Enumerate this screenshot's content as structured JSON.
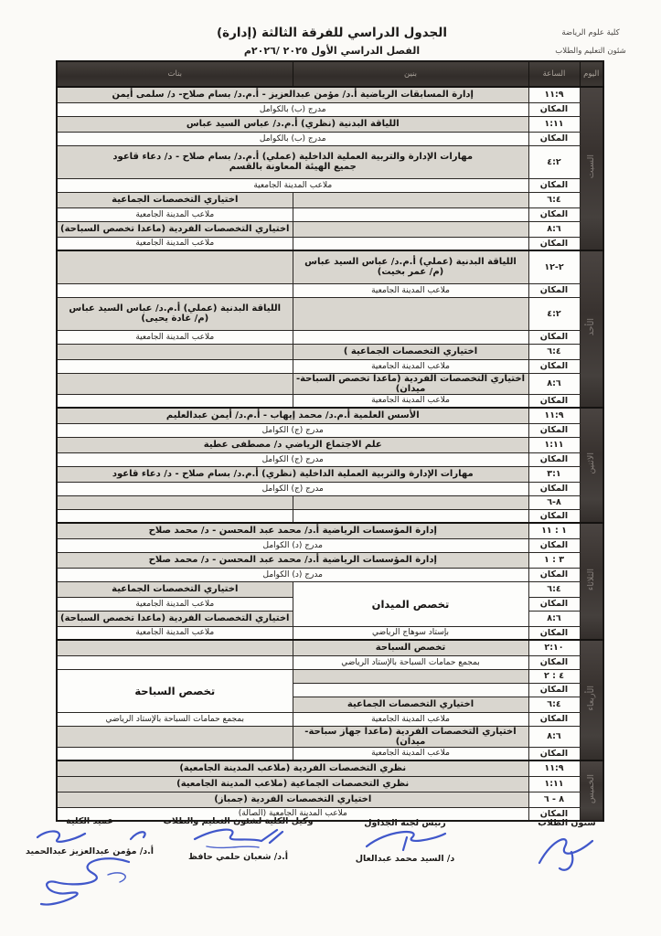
{
  "meta": {
    "corner_line1": "كلية علوم الرياضة",
    "corner_line2": "شئون التعليم والطلاب",
    "title": "الجدول الدراسي للفرقة الثالثة (إدارة)",
    "subtitle": "الفصل الدراسي الأول ٢٠٢٥ /٢٠٢٦م"
  },
  "colors": {
    "ink_blue": "#2b45c4",
    "header_dark": "#38322f",
    "shade_gray": "#d9d6cf"
  },
  "table": {
    "headers": {
      "day": "اليوم",
      "time": "الساعة",
      "right": "بنين",
      "left": "بنات"
    },
    "place_label": "المكان",
    "groups": [
      {
        "day": "السبت",
        "rows": [
          {
            "time": "١١:٩",
            "h": "h-subj",
            "cells": [
              {
                "col": "full",
                "cls": "subj",
                "text": "إدارة المسابقات الرياضية  أ.د/ مؤمن عبدالعزيز - أ.م.د/ بسام صلاح- د/ سلمى أيمن"
              }
            ]
          },
          {
            "time": "المكان",
            "h": "h-place",
            "cells": [
              {
                "col": "full",
                "cls": "place",
                "text": "مدرج (ب) بالكوامل"
              }
            ]
          },
          {
            "time": "١:١١",
            "h": "h-subj",
            "cells": [
              {
                "col": "full",
                "cls": "subj",
                "text": "اللياقة البدنية (نظري)  أ.م.د/ عباس السيد عباس"
              }
            ]
          },
          {
            "time": "المكان",
            "h": "h-place",
            "cells": [
              {
                "col": "full",
                "cls": "place",
                "text": "مدرج (ب) بالكوامل"
              }
            ]
          },
          {
            "time": "٤:٢",
            "h": "h-tall",
            "cells": [
              {
                "col": "full",
                "cls": "subj",
                "lines": [
                  "مهارات الإدارة والتربية العملية الداخلية (عملي) أ.م.د/ بسام صلاح - د/ دعاء قاعود",
                  "جميع الهيئة المعاونة بالقسم"
                ]
              }
            ]
          },
          {
            "time": "المكان",
            "h": "h-place",
            "cells": [
              {
                "col": "full",
                "cls": "place",
                "text": "ملاعب المدينة الجامعية"
              }
            ]
          },
          {
            "time": "٦:٤",
            "h": "h-subj",
            "cells": [
              {
                "col": "right",
                "cls": "empty-shaded",
                "text": ""
              },
              {
                "col": "left",
                "cls": "subj",
                "text": "اختياري التخصصات الجماعية"
              }
            ]
          },
          {
            "time": "المكان",
            "h": "h-place",
            "cells": [
              {
                "col": "right",
                "cls": "place",
                "text": ""
              },
              {
                "col": "left",
                "cls": "place",
                "text": "ملاعب المدينة الجامعية"
              }
            ]
          },
          {
            "time": "٨:٦",
            "h": "h-subj",
            "cells": [
              {
                "col": "right",
                "cls": "empty-shaded",
                "text": ""
              },
              {
                "col": "left",
                "cls": "subj",
                "text": "اختياري التخصصات الفردية (ماعدا تخصص السباحة)"
              }
            ]
          },
          {
            "time": "المكان",
            "h": "h-place",
            "cells": [
              {
                "col": "right",
                "cls": "place",
                "text": ""
              },
              {
                "col": "left",
                "cls": "place",
                "text": "ملاعب المدينة الجامعية"
              }
            ]
          }
        ]
      },
      {
        "day": "الأحد",
        "rows": [
          {
            "time": "٢-١٢",
            "h": "h-tall",
            "cells": [
              {
                "col": "right",
                "cls": "subj",
                "lines": [
                  "اللياقة البدنية (عملي) أ.م.د/ عباس السيد عباس",
                  "(م/ عمر بخيت)"
                ]
              },
              {
                "col": "left",
                "cls": "empty-shaded",
                "text": ""
              }
            ]
          },
          {
            "time": "المكان",
            "h": "h-place",
            "cells": [
              {
                "col": "right",
                "cls": "place",
                "text": "ملاعب المدينة الجامعية"
              },
              {
                "col": "left",
                "cls": "place",
                "text": ""
              }
            ]
          },
          {
            "time": "٤:٢",
            "h": "h-tall",
            "cells": [
              {
                "col": "right",
                "cls": "empty-shaded",
                "text": ""
              },
              {
                "col": "left",
                "cls": "subj",
                "lines": [
                  "اللياقة البدنية (عملي) أ.م.د/ عباس السيد عباس",
                  "(م/ غادة يحيى)"
                ]
              }
            ]
          },
          {
            "time": "المكان",
            "h": "h-place",
            "cells": [
              {
                "col": "right",
                "cls": "place",
                "text": ""
              },
              {
                "col": "left",
                "cls": "place",
                "text": "ملاعب المدينة الجامعية"
              }
            ]
          },
          {
            "time": "٦:٤",
            "h": "h-subj",
            "cells": [
              {
                "col": "right",
                "cls": "subj",
                "text": "اختياري التخصصات الجماعية )"
              },
              {
                "col": "left",
                "cls": "empty-shaded",
                "text": ""
              }
            ]
          },
          {
            "time": "المكان",
            "h": "h-place",
            "cells": [
              {
                "col": "right",
                "cls": "place",
                "text": "ملاعب المدينة الجامعية"
              },
              {
                "col": "left",
                "cls": "place",
                "text": ""
              }
            ]
          },
          {
            "time": "٨:٦",
            "h": "h-subj",
            "cells": [
              {
                "col": "right",
                "cls": "subj",
                "text": "اختياري التخصصات الفردية (ماعدا تخصص السباحة-ميدان)"
              },
              {
                "col": "left",
                "cls": "empty-shaded",
                "text": ""
              }
            ]
          },
          {
            "time": "المكان",
            "h": "h-place",
            "cells": [
              {
                "col": "right",
                "cls": "place",
                "text": "ملاعب المدينة الجامعية"
              },
              {
                "col": "left",
                "cls": "place",
                "text": ""
              }
            ]
          }
        ]
      },
      {
        "day": "الاثنين",
        "rows": [
          {
            "time": "١١:٩",
            "h": "h-subj",
            "cells": [
              {
                "col": "full",
                "cls": "subj",
                "text": "الأسس العلمية أ.م.د/ محمد إيهاب - أ.م.د/ أيمن عبدالعليم"
              }
            ]
          },
          {
            "time": "المكان",
            "h": "h-place",
            "cells": [
              {
                "col": "full",
                "cls": "place",
                "text": "مدرج (ج) الكوامل"
              }
            ]
          },
          {
            "time": "١:١١",
            "h": "h-subj",
            "cells": [
              {
                "col": "full",
                "cls": "subj",
                "text": "علم الاجتماع الرياضي د/ مصطفى عطية"
              }
            ]
          },
          {
            "time": "المكان",
            "h": "h-place",
            "cells": [
              {
                "col": "full",
                "cls": "place",
                "text": "مدرج (ج) الكوامل"
              }
            ]
          },
          {
            "time": "٣:١",
            "h": "h-subj",
            "cells": [
              {
                "col": "full",
                "cls": "subj",
                "text": "مهارات الإدارة والتربية العملية الداخلية (نظري) أ.م.د/ بسام صلاح - د/ دعاء قاعود"
              }
            ]
          },
          {
            "time": "المكان",
            "h": "h-place",
            "cells": [
              {
                "col": "full",
                "cls": "place",
                "text": "مدرج (ج) الكوامل"
              }
            ]
          },
          {
            "time": "٨-٦",
            "h": "h-place",
            "cells": [
              {
                "col": "right",
                "cls": "empty-shaded",
                "text": ""
              },
              {
                "col": "left",
                "cls": "empty-shaded",
                "text": ""
              }
            ]
          },
          {
            "time": "المكان",
            "h": "h-place",
            "cells": [
              {
                "col": "right",
                "cls": "place",
                "text": ""
              },
              {
                "col": "left",
                "cls": "place",
                "text": ""
              }
            ]
          }
        ]
      },
      {
        "day": "الثلاثاء",
        "rows": [
          {
            "time": "١ : ١١",
            "h": "h-subj",
            "cells": [
              {
                "col": "full",
                "cls": "subj",
                "text": "إدارة المؤسسات الرياضية  أ.د/ محمد عبد المحسن - د/ محمد صلاح"
              }
            ]
          },
          {
            "time": "المكان",
            "h": "h-place",
            "cells": [
              {
                "col": "full",
                "cls": "place",
                "text": "مدرج (د) الكوامل"
              }
            ]
          },
          {
            "time": "٣ : ١",
            "h": "h-subj",
            "cells": [
              {
                "col": "full",
                "cls": "subj",
                "text": "إدارة المؤسسات الرياضية  أ.د/ محمد عبد المحسن - د/ محمد صلاح"
              }
            ]
          },
          {
            "time": "المكان",
            "h": "h-place",
            "cells": [
              {
                "col": "full",
                "cls": "place",
                "text": "مدرج (د) الكوامل"
              }
            ]
          },
          {
            "time": "٦:٤",
            "h": "h-subj",
            "cells": [
              {
                "col": "right",
                "cls": "big",
                "rowspan": 3,
                "text": "تخصص الميدان"
              },
              {
                "col": "left",
                "cls": "subj",
                "text": "اختياري التخصصات الجماعية"
              }
            ]
          },
          {
            "time": "المكان",
            "h": "h-place",
            "cells": [
              {
                "col": "left",
                "cls": "place",
                "text": "ملاعب المدينة الجامعية"
              }
            ]
          },
          {
            "time": "٨:٦",
            "h": "h-subj",
            "cells": [
              {
                "col": "left",
                "cls": "subj",
                "text": "اختياري التخصصات الفردية (ماعدا تخصص السباحة)"
              }
            ]
          },
          {
            "time": "المكان",
            "h": "h-place",
            "cells": [
              {
                "col": "right",
                "cls": "place",
                "text": "بإستاد سوهاج الرياضي"
              },
              {
                "col": "left",
                "cls": "place",
                "text": "ملاعب المدينة الجامعية"
              }
            ]
          }
        ]
      },
      {
        "day": "الأربعاء",
        "rows": [
          {
            "time": "٢:١٠",
            "h": "h-subj",
            "cells": [
              {
                "col": "right",
                "cls": "subj",
                "text": "تخصص السباحة"
              },
              {
                "col": "left",
                "cls": "empty-shaded",
                "text": ""
              }
            ]
          },
          {
            "time": "المكان",
            "h": "h-place",
            "cells": [
              {
                "col": "right",
                "cls": "place",
                "text": "بمجمع حمامات السباحة بالإستاد الرياضي"
              },
              {
                "col": "left",
                "cls": "place",
                "text": ""
              }
            ]
          },
          {
            "time": "٤ : ٢",
            "h": "h-place",
            "cells": [
              {
                "col": "right",
                "cls": "empty-shaded",
                "text": ""
              },
              {
                "col": "left",
                "cls": "big",
                "rowspan": 3,
                "text": "تخصص السباحة"
              }
            ]
          },
          {
            "time": "المكان",
            "h": "h-place",
            "cells": [
              {
                "col": "right",
                "cls": "place",
                "text": ""
              }
            ]
          },
          {
            "time": "٦:٤",
            "h": "h-subj",
            "cells": [
              {
                "col": "right",
                "cls": "subj",
                "text": "اختياري التخصصات الجماعية"
              }
            ]
          },
          {
            "time": "المكان",
            "h": "h-place",
            "cells": [
              {
                "col": "right",
                "cls": "place",
                "text": "ملاعب المدينة الجامعية"
              },
              {
                "col": "left",
                "cls": "place",
                "text": "بمجمع حمامات السباحة بالإستاد الرياضي"
              }
            ]
          },
          {
            "time": "٨:٦",
            "h": "h-subj",
            "cells": [
              {
                "col": "right",
                "cls": "subj",
                "text": "اختياري التخصصات الفردية (ماعدا جهاز سباحة-ميدان)"
              },
              {
                "col": "left",
                "cls": "empty-shaded",
                "text": ""
              }
            ]
          },
          {
            "time": "المكان",
            "h": "h-place",
            "cells": [
              {
                "col": "right",
                "cls": "place",
                "text": "ملاعب المدينة الجامعية"
              },
              {
                "col": "left",
                "cls": "place",
                "text": ""
              }
            ]
          }
        ]
      },
      {
        "day": "الخميس",
        "rows": [
          {
            "time": "١١:٩",
            "h": "h-subj",
            "cells": [
              {
                "col": "full",
                "cls": "subj",
                "text": "نظري التخصصات الفردية (ملاعب المدينة الجامعية)"
              }
            ]
          },
          {
            "time": "١:١١",
            "h": "h-subj",
            "cells": [
              {
                "col": "full",
                "cls": "subj",
                "text": "نظري التخصصات الجماعية (ملاعب المدينة الجامعية)"
              }
            ]
          },
          {
            "time": "٨ - ٦",
            "h": "h-subj",
            "cells": [
              {
                "col": "full",
                "cls": "subj",
                "text": "اختياري التخصصات الفردية (جمباز)"
              }
            ]
          },
          {
            "time": "المكان",
            "h": "h-place",
            "cells": [
              {
                "col": "full",
                "cls": "place",
                "text": "ملاعب المدينة الجامعية (الصالة)"
              }
            ]
          }
        ]
      }
    ]
  },
  "signatures": [
    {
      "label": "شئون الطلاب",
      "name": ""
    },
    {
      "label": "رئيس لجنة الجداول",
      "name": "د/ السيد محمد عبدالعال"
    },
    {
      "label": "وكيل الكلية لشئون التعليم والطلاب",
      "name": "أ.د/ شعبان حلمي حافظ"
    },
    {
      "label": "عميد الكلية",
      "name": "أ.د/ مؤمن عبدالعزيز عبدالحميد"
    }
  ]
}
